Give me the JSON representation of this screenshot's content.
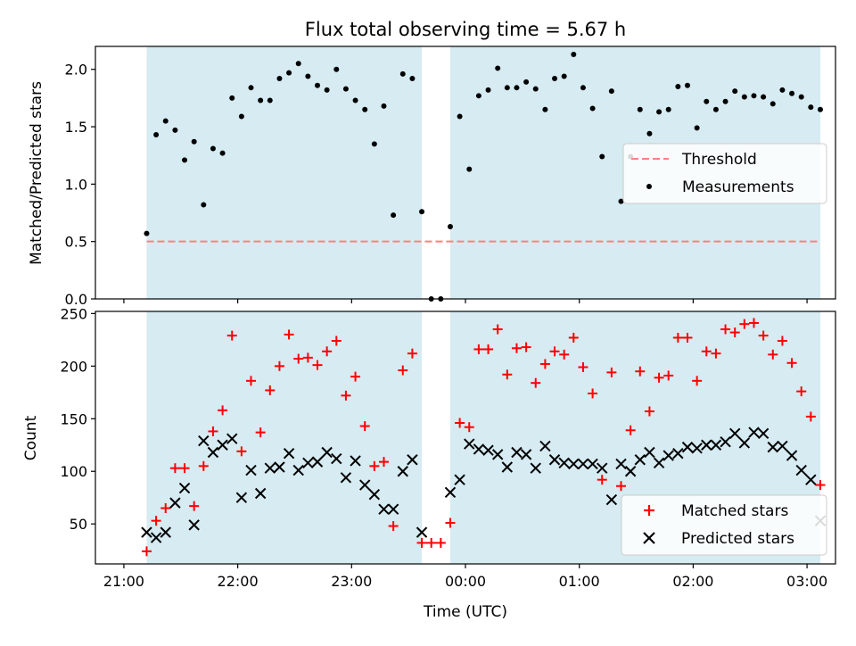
{
  "chart_data": [
    {
      "type": "scatter",
      "title": "Flux total observing time = 5.67 h",
      "xlabel": "",
      "ylabel": "Matched/Predicted stars",
      "ylim": [
        0,
        2.2
      ],
      "yticks": [
        0.0,
        0.5,
        1.0,
        1.5,
        2.0
      ],
      "ytick_labels": [
        "0.0",
        "0.5",
        "1.0",
        "1.5",
        "2.0"
      ],
      "xlim_minutes": [
        -15,
        375
      ],
      "shaded_intervals_minutes": [
        [
          12,
          157
        ],
        [
          172,
          367
        ]
      ],
      "shade_color": "#add8e6",
      "threshold": {
        "name": "Threshold",
        "value": 0.5,
        "x_range_minutes": [
          12,
          367
        ],
        "color": "#ff7f7f"
      },
      "series": [
        {
          "name": "Measurements",
          "color": "#000000",
          "marker": "dot",
          "x_minutes": [
            12,
            17,
            22,
            27,
            32,
            37,
            42,
            47,
            52,
            57,
            62,
            67,
            72,
            77,
            82,
            87,
            92,
            97,
            102,
            107,
            112,
            117,
            122,
            127,
            132,
            137,
            142,
            147,
            152,
            157,
            162,
            167,
            172,
            177,
            182,
            187,
            192,
            197,
            202,
            207,
            212,
            217,
            222,
            227,
            232,
            237,
            242,
            247,
            252,
            257,
            262,
            267,
            272,
            277,
            282,
            287,
            292,
            297,
            302,
            307,
            312,
            317,
            322,
            327,
            332,
            337,
            342,
            347,
            352,
            357,
            362,
            367
          ],
          "y": [
            0.57,
            1.43,
            1.55,
            1.47,
            1.21,
            1.37,
            0.82,
            1.31,
            1.27,
            1.75,
            1.59,
            1.84,
            1.73,
            1.73,
            1.92,
            1.97,
            2.05,
            1.94,
            1.86,
            1.82,
            2.0,
            1.83,
            1.73,
            1.65,
            1.35,
            1.68,
            0.73,
            1.96,
            1.92,
            0.76,
            0.0,
            0.0,
            0.63,
            1.59,
            1.13,
            1.77,
            1.82,
            2.01,
            1.84,
            1.84,
            1.89,
            1.83,
            1.65,
            1.92,
            1.94,
            2.13,
            1.84,
            1.66,
            1.24,
            1.81,
            0.85,
            1.24,
            1.65,
            1.44,
            1.63,
            1.65,
            1.85,
            1.86,
            1.49,
            1.72,
            1.65,
            1.72,
            1.81,
            1.76,
            1.77,
            1.76,
            1.7,
            1.82,
            1.79,
            1.76,
            1.67,
            1.65
          ]
        }
      ],
      "legend": {
        "placement": "center-right",
        "entries": [
          "Threshold",
          "Measurements"
        ]
      },
      "grid": false
    },
    {
      "type": "scatter",
      "title": "",
      "xlabel": "Time (UTC)",
      "ylabel": "Count",
      "ylim": [
        12,
        252
      ],
      "yticks": [
        50,
        100,
        150,
        200,
        250
      ],
      "ytick_labels": [
        "50",
        "100",
        "150",
        "200",
        "250"
      ],
      "xlim_minutes": [
        -15,
        375
      ],
      "xticks_minutes": [
        0,
        60,
        120,
        180,
        240,
        300,
        360
      ],
      "xtick_labels": [
        "21:00",
        "22:00",
        "23:00",
        "00:00",
        "01:00",
        "02:00",
        "03:00"
      ],
      "shaded_intervals_minutes": [
        [
          12,
          157
        ],
        [
          172,
          367
        ]
      ],
      "shade_color": "#add8e6",
      "series": [
        {
          "name": "Matched stars",
          "color": "#ff0000",
          "marker": "plus",
          "x_minutes": [
            12,
            17,
            22,
            27,
            32,
            37,
            42,
            47,
            52,
            57,
            62,
            67,
            72,
            77,
            82,
            87,
            92,
            97,
            102,
            107,
            112,
            117,
            122,
            127,
            132,
            137,
            142,
            147,
            152,
            157,
            162,
            167,
            172,
            177,
            182,
            187,
            192,
            197,
            202,
            207,
            212,
            217,
            222,
            227,
            232,
            237,
            242,
            247,
            252,
            257,
            262,
            267,
            272,
            277,
            282,
            287,
            292,
            297,
            302,
            307,
            312,
            317,
            322,
            327,
            332,
            337,
            342,
            347,
            352,
            357,
            362,
            367
          ],
          "y": [
            24,
            53,
            65,
            103,
            103,
            67,
            105,
            138,
            158,
            229,
            119,
            186,
            137,
            177,
            200,
            230,
            207,
            208,
            201,
            214,
            224,
            172,
            190,
            143,
            105,
            109,
            48,
            196,
            212,
            32,
            32,
            32,
            51,
            146,
            142,
            216,
            216,
            235,
            192,
            217,
            218,
            184,
            202,
            214,
            211,
            227,
            199,
            174,
            92,
            194,
            86,
            139,
            195,
            157,
            189,
            191,
            227,
            227,
            186,
            214,
            212,
            235,
            232,
            240,
            241,
            229,
            211,
            224,
            203,
            176,
            152,
            87
          ]
        },
        {
          "name": "Predicted stars",
          "color": "#000000",
          "marker": "x",
          "x_minutes": [
            12,
            17,
            22,
            27,
            32,
            37,
            42,
            47,
            52,
            57,
            62,
            67,
            72,
            77,
            82,
            87,
            92,
            97,
            102,
            107,
            112,
            117,
            122,
            127,
            132,
            137,
            142,
            147,
            152,
            157,
            172,
            177,
            182,
            187,
            192,
            197,
            202,
            207,
            212,
            217,
            222,
            227,
            232,
            237,
            242,
            247,
            252,
            257,
            262,
            267,
            272,
            277,
            282,
            287,
            292,
            297,
            302,
            307,
            312,
            317,
            322,
            327,
            332,
            337,
            342,
            347,
            352,
            357,
            362,
            367
          ],
          "y": [
            42,
            37,
            42,
            70,
            84,
            49,
            129,
            118,
            125,
            131,
            75,
            101,
            79,
            103,
            104,
            117,
            101,
            108,
            109,
            118,
            112,
            94,
            110,
            87,
            78,
            64,
            64,
            100,
            111,
            42,
            80,
            92,
            126,
            121,
            120,
            116,
            104,
            118,
            116,
            103,
            124,
            111,
            108,
            107,
            107,
            107,
            103,
            73,
            107,
            100,
            111,
            118,
            108,
            115,
            117,
            123,
            122,
            125,
            125,
            128,
            136,
            127,
            137,
            136,
            123,
            124,
            115,
            101,
            92,
            53
          ]
        }
      ],
      "legend": {
        "placement": "lower-right",
        "entries": [
          "Matched stars",
          "Predicted stars"
        ]
      },
      "grid": false
    }
  ]
}
